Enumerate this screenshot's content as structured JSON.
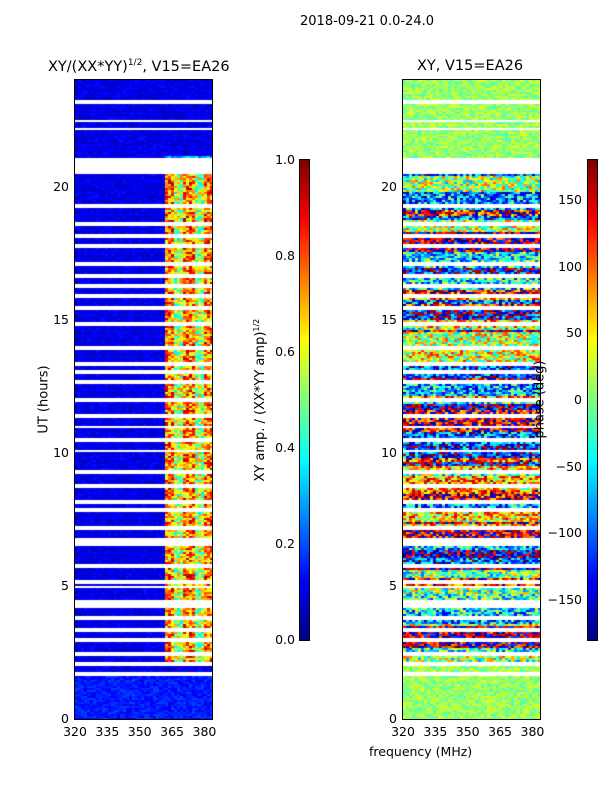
{
  "chart_data": [
    {
      "type": "heatmap",
      "suptitle": "2018-09-21 0.0-24.0",
      "title": "XY/(XX*YY)",
      "title_sup": "1/2",
      "title_suffix": ", V15=EA26",
      "xlabel": "frequency (MHz)",
      "ylabel": "UT (hours)",
      "xlim": [
        320,
        383.5
      ],
      "ylim": [
        0,
        24
      ],
      "xticks": [
        "320",
        "335",
        "350",
        "365",
        "380"
      ],
      "yticks": [
        "0",
        "5",
        "10",
        "15",
        "20"
      ],
      "colorbar": {
        "label": "XY amp. / (XX*YY amp)",
        "label_sup": "1/2",
        "range": [
          0,
          1
        ],
        "ticks": [
          "0.0",
          "0.2",
          "0.4",
          "0.6",
          "0.8",
          "1.0"
        ],
        "cmap": "jet"
      }
    },
    {
      "type": "heatmap",
      "title": "XY, V15=EA26",
      "xlabel": "frequency (MHz)",
      "xlim": [
        320,
        383.5
      ],
      "ylim": [
        0,
        24
      ],
      "xticks": [
        "320",
        "335",
        "350",
        "365",
        "380"
      ],
      "yticks": [
        "0",
        "5",
        "10",
        "15",
        "20"
      ],
      "colorbar": {
        "label": "phase (deg)",
        "range": [
          -180,
          180
        ],
        "ticks": [
          "−150",
          "−100",
          "−50",
          "0",
          "50",
          "100",
          "150"
        ],
        "cmap": "jet"
      }
    }
  ],
  "flagged_hours": [
    1.75,
    2.1,
    2.5,
    3.0,
    3.4,
    3.8,
    4.3,
    4.45,
    5.0,
    5.2,
    5.8,
    6.6,
    6.75,
    7.2,
    7.9,
    8.2,
    8.8,
    9.3,
    10.1,
    10.5,
    11.0,
    11.4,
    12.0,
    12.7,
    13.1,
    13.4,
    14.0,
    14.9,
    15.5,
    15.9,
    16.3,
    16.7,
    17.1,
    17.8,
    18.2,
    18.6,
    19.3,
    20.6,
    20.75,
    20.9,
    21.05,
    22.2,
    22.5,
    23.2
  ]
}
